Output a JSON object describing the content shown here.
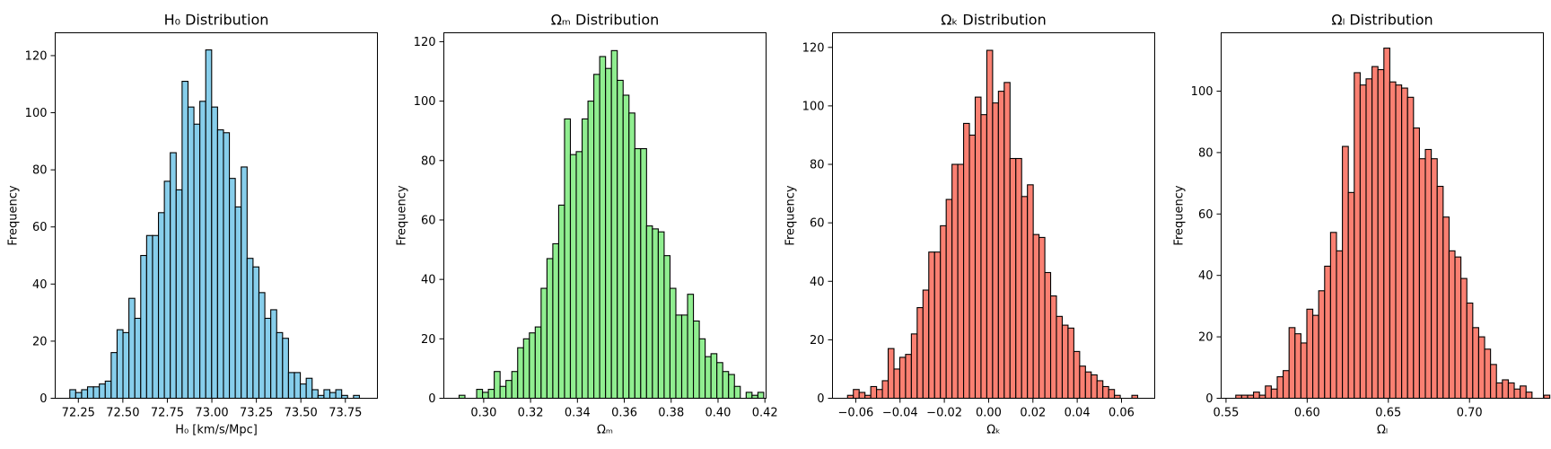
{
  "chart_data": [
    {
      "type": "bar",
      "title": "H₀ Distribution",
      "xlabel": "H₀ [km/s/Mpc]",
      "ylabel": "Frequency",
      "color": "#87CEEB",
      "edge_color": "#000000",
      "xlim": [
        72.12,
        73.93
      ],
      "ylim": [
        0,
        128
      ],
      "xticks": [
        72.25,
        72.5,
        72.75,
        73.0,
        73.25,
        73.5,
        73.75
      ],
      "xtick_labels": [
        "72.25",
        "72.50",
        "72.75",
        "73.00",
        "73.25",
        "73.50",
        "73.75"
      ],
      "yticks": [
        0,
        20,
        40,
        60,
        80,
        100,
        120
      ],
      "ytick_labels": [
        "0",
        "20",
        "40",
        "60",
        "80",
        "100",
        "120"
      ],
      "bin_start": 72.202,
      "bin_width": 0.0332,
      "values": [
        3,
        2,
        3,
        4,
        4,
        5,
        6,
        16,
        24,
        23,
        35,
        28,
        50,
        57,
        57,
        65,
        76,
        86,
        73,
        111,
        102,
        96,
        104,
        122,
        102,
        94,
        93,
        77,
        67,
        81,
        49,
        46,
        37,
        28,
        31,
        23,
        21,
        9,
        9,
        5,
        7,
        3,
        1,
        3,
        2,
        3,
        1,
        0,
        1
      ]
    },
    {
      "type": "bar",
      "title": "Ωₘ Distribution",
      "xlabel": "Ωₘ",
      "ylabel": "Frequency",
      "color": "#90EE90",
      "edge_color": "#000000",
      "xlim": [
        0.283,
        0.4205
      ],
      "ylim": [
        0,
        123
      ],
      "xticks": [
        0.3,
        0.32,
        0.34,
        0.36,
        0.38,
        0.4,
        0.42
      ],
      "xtick_labels": [
        "0.30",
        "0.32",
        "0.34",
        "0.36",
        "0.38",
        "0.40",
        "0.42"
      ],
      "yticks": [
        0,
        20,
        40,
        60,
        80,
        100,
        120
      ],
      "ytick_labels": [
        "0",
        "20",
        "40",
        "60",
        "80",
        "100",
        "120"
      ],
      "bin_start": 0.2895,
      "bin_width": 0.0025,
      "values": [
        1,
        0,
        0,
        3,
        2,
        3,
        9,
        4,
        6,
        9,
        17,
        20,
        22,
        24,
        37,
        47,
        52,
        65,
        94,
        82,
        83,
        94,
        100,
        109,
        115,
        111,
        117,
        107,
        102,
        96,
        84,
        84,
        58,
        57,
        56,
        48,
        37,
        28,
        28,
        35,
        26,
        20,
        14,
        15,
        12,
        9,
        8,
        4,
        0,
        2,
        1,
        2
      ]
    },
    {
      "type": "bar",
      "title": "Ωₖ Distribution",
      "xlabel": "Ωₖ",
      "ylabel": "Frequency",
      "color": "#FA8072",
      "edge_color": "#000000",
      "xlim": [
        -0.0705,
        0.075
      ],
      "ylim": [
        0,
        125
      ],
      "xticks": [
        -0.06,
        -0.04,
        -0.02,
        0.0,
        0.02,
        0.04,
        0.06
      ],
      "xtick_labels": [
        "−0.06",
        "−0.04",
        "−0.02",
        "0.00",
        "0.02",
        "0.04",
        "0.06"
      ],
      "yticks": [
        0,
        20,
        40,
        60,
        80,
        100,
        120
      ],
      "ytick_labels": [
        "0",
        "20",
        "40",
        "60",
        "80",
        "100",
        "120"
      ],
      "bin_start": -0.0637,
      "bin_width": 0.00262,
      "values": [
        1,
        3,
        2,
        1,
        4,
        3,
        6,
        17,
        10,
        14,
        15,
        22,
        31,
        37,
        50,
        50,
        59,
        68,
        80,
        80,
        94,
        90,
        103,
        97,
        119,
        101,
        105,
        108,
        82,
        82,
        69,
        73,
        56,
        55,
        43,
        35,
        28,
        25,
        24,
        16,
        11,
        9,
        8,
        6,
        4,
        3,
        1,
        0,
        0,
        1
      ]
    },
    {
      "type": "bar",
      "title": "Ωₗ Distribution",
      "xlabel": "Ωₗ",
      "ylabel": "Frequency",
      "color": "#FA8072",
      "edge_color": "#000000",
      "xlim": [
        0.547,
        0.7455
      ],
      "ylim": [
        0,
        119
      ],
      "xticks": [
        0.55,
        0.6,
        0.65,
        0.7
      ],
      "xtick_labels": [
        "0.55",
        "0.60",
        "0.65",
        "0.70"
      ],
      "yticks": [
        0,
        20,
        40,
        60,
        80,
        100
      ],
      "ytick_labels": [
        "0",
        "20",
        "40",
        "60",
        "80",
        "100"
      ],
      "bin_start": 0.556,
      "bin_width": 0.00365,
      "values": [
        1,
        1,
        1,
        2,
        1,
        4,
        3,
        7,
        9,
        23,
        21,
        18,
        29,
        27,
        35,
        43,
        54,
        48,
        82,
        67,
        106,
        102,
        104,
        108,
        107,
        114,
        103,
        102,
        101,
        98,
        88,
        78,
        81,
        78,
        69,
        59,
        48,
        46,
        39,
        31,
        23,
        20,
        16,
        11,
        5,
        6,
        5,
        3,
        4,
        2,
        0,
        0,
        1
      ]
    }
  ]
}
